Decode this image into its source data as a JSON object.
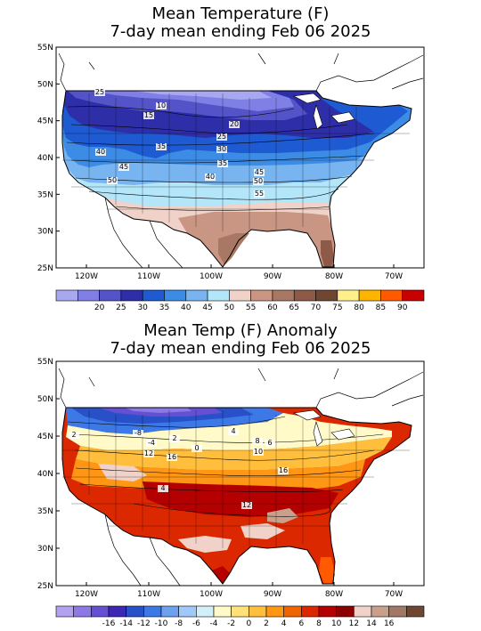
{
  "panel1": {
    "title_line1": "Mean Temperature (F)",
    "title_line2": "7-day mean ending Feb 06 2025",
    "lat_labels": [
      "55N",
      "50N",
      "45N",
      "40N",
      "35N",
      "30N",
      "25N"
    ],
    "lon_labels": [
      "120W",
      "110W",
      "100W",
      "90W",
      "80W",
      "70W"
    ],
    "contour_labels": [
      "25",
      "10",
      "15",
      "20",
      "25",
      "30",
      "35",
      "35",
      "40",
      "40",
      "45",
      "50",
      "45",
      "50",
      "55"
    ],
    "colorbar": {
      "colors": [
        "#a8a8f0",
        "#7f7fe6",
        "#5454c8",
        "#2e2ea8",
        "#1e5ad2",
        "#3c8ce6",
        "#78b4f0",
        "#b4e6fa",
        "#f0d2c8",
        "#c89682",
        "#a87864",
        "#8c5a46",
        "#6e4632",
        "#fff08c",
        "#ffb400",
        "#ff5a00",
        "#c80000"
      ],
      "labels": [
        "20",
        "25",
        "30",
        "35",
        "40",
        "45",
        "50",
        "55",
        "60",
        "65",
        "70",
        "75",
        "80",
        "85",
        "90"
      ]
    }
  },
  "panel2": {
    "title_line1": "Mean Temp (F) Anomaly",
    "title_line2": "7-day mean ending Feb 06 2025",
    "lat_labels": [
      "55N",
      "50N",
      "45N",
      "40N",
      "35N",
      "30N",
      "25N"
    ],
    "lon_labels": [
      "120W",
      "110W",
      "100W",
      "90W",
      "80W",
      "70W"
    ],
    "contour_labels": [
      "-8",
      "-4",
      "2",
      "12",
      "16",
      "0",
      "4",
      "8",
      "10",
      "16",
      "4",
      "12",
      "2",
      "6"
    ],
    "colorbar": {
      "colors": [
        "#b4a0f0",
        "#8c78e6",
        "#6450d2",
        "#3c28b4",
        "#2850c8",
        "#3c78e6",
        "#6ea0f0",
        "#a0c8f8",
        "#d2f0fa",
        "#fffac8",
        "#ffe178",
        "#ffbe3c",
        "#ff9614",
        "#f06400",
        "#dc2800",
        "#b40000",
        "#8c0000",
        "#f0d2c8",
        "#c8a08c",
        "#a07864",
        "#6e4632"
      ],
      "labels": [
        "-16",
        "-14",
        "-12",
        "-10",
        "-8",
        "-6",
        "-4",
        "-2",
        "0",
        "2",
        "4",
        "6",
        "8",
        "10",
        "12",
        "14",
        "16"
      ]
    }
  }
}
